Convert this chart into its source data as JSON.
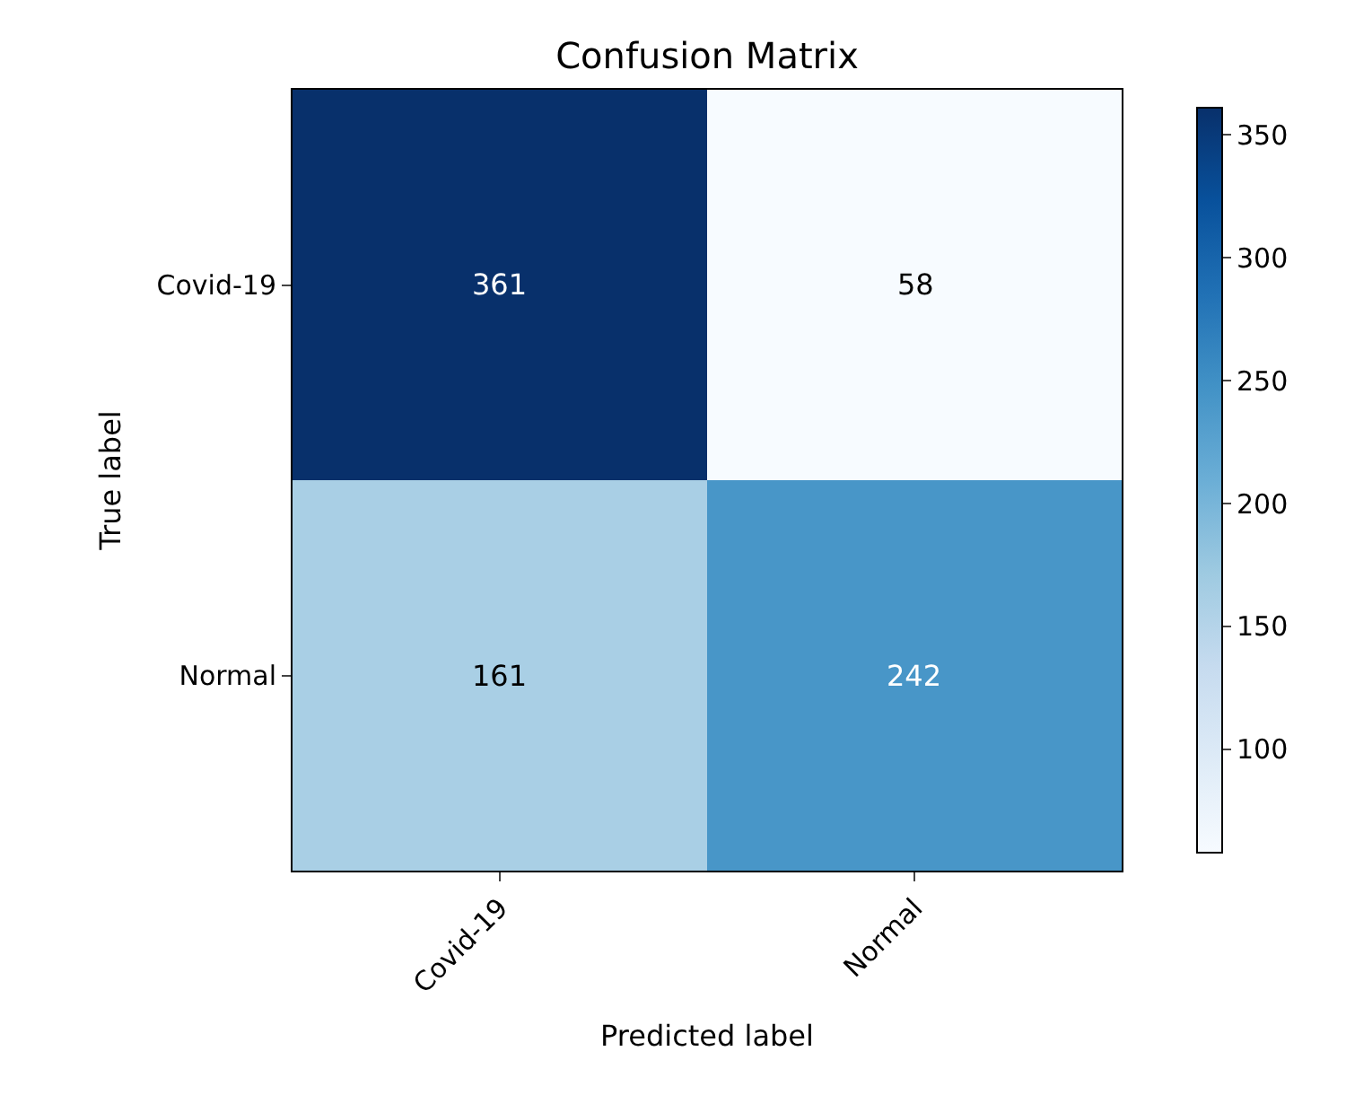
{
  "chart_data": {
    "type": "heatmap",
    "title": "Confusion Matrix",
    "xlabel": "Predicted label",
    "ylabel": "True label",
    "categories": [
      "Covid-19",
      "Normal"
    ],
    "y_categories": [
      "Covid-19",
      "Normal"
    ],
    "cells": [
      [
        361,
        58
      ],
      [
        161,
        242
      ]
    ],
    "clim": [
      58,
      361
    ],
    "cticks": [
      100,
      150,
      200,
      250,
      300,
      350
    ],
    "data_labels": true
  }
}
